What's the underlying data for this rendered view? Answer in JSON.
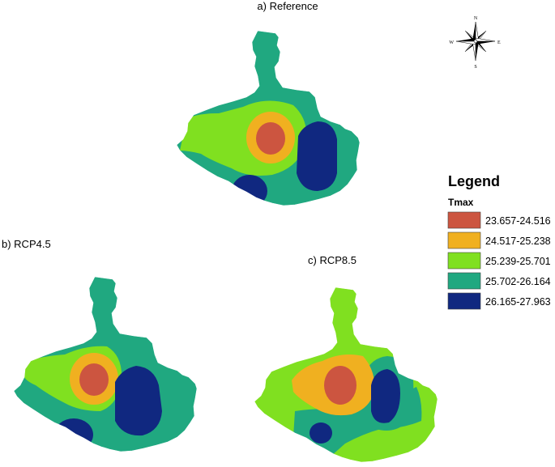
{
  "maps": [
    {
      "title": "a) Reference"
    },
    {
      "title": "b) RCP4.5"
    },
    {
      "title": "c) RCP8.5"
    }
  ],
  "legend": {
    "title": "Legend",
    "field": "Tmax",
    "classes": [
      {
        "label": "23.657-24.516",
        "color": "#cc5540"
      },
      {
        "label": "24.517-25.238",
        "color": "#f0b020"
      },
      {
        "label": "25.239-25.701",
        "color": "#80e020"
      },
      {
        "label": "25.702-26.164",
        "color": "#20a880"
      },
      {
        "label": "26.165-27.963",
        "color": "#102880"
      }
    ]
  },
  "compass": {
    "n": "N",
    "s": "S",
    "e": "E",
    "w": "W"
  }
}
